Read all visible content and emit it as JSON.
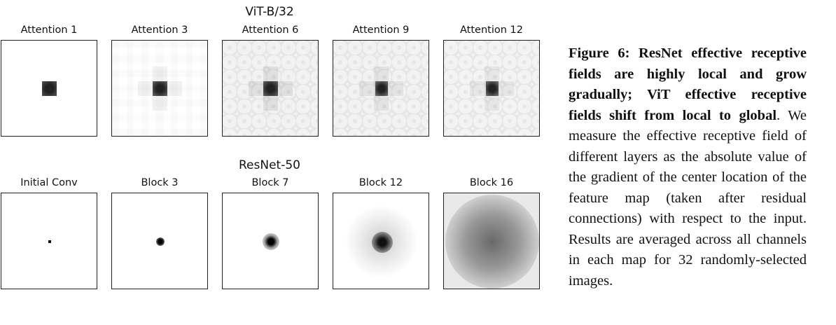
{
  "vit": {
    "title": "ViT-B/32",
    "panels": [
      "Attention 1",
      "Attention 3",
      "Attention 6",
      "Attention 9",
      "Attention 12"
    ]
  },
  "resnet": {
    "title": "ResNet-50",
    "panels": [
      "Initial Conv",
      "Block 3",
      "Block 7",
      "Block 12",
      "Block 16"
    ]
  },
  "caption": {
    "bold": "Figure 6: ResNet effective receptive fields are highly local and grow gradually; ViT effective receptive fields shift from local to global",
    "body": ". We measure the effective receptive field of different layers as the absolute value of the gradient of the center location of the feature map (taken after residual connections) with respect to the input. Results are averaged across all channels in each map for 32 randomly-selected images."
  }
}
